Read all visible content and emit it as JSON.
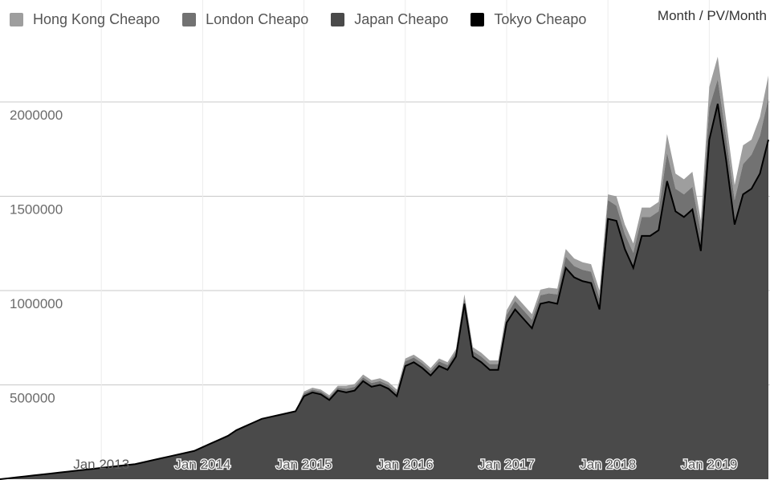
{
  "legend": [
    {
      "name": "Hong Kong Cheapo",
      "color": "#9e9e9e"
    },
    {
      "name": "London Cheapo",
      "color": "#727272"
    },
    {
      "name": "Japan Cheapo",
      "color": "#4a4a4a"
    },
    {
      "name": "Tokyo Cheapo",
      "color": "#000000"
    }
  ],
  "unit_label": "Month / PV/Month",
  "chart_data": {
    "type": "area",
    "stacked": true,
    "title": "",
    "xlabel": "",
    "ylabel": "Month / PV/Month",
    "ylim": [
      0,
      2500000
    ],
    "grid": true,
    "legend_position": "top-left",
    "y_ticks": [
      500000,
      1000000,
      1500000,
      2000000
    ],
    "y_tick_labels": [
      "500000",
      "1000000",
      "1500000",
      "2000000"
    ],
    "x_tick_labels": [
      "Jan 2013",
      "Jan 2014",
      "Jan 2015",
      "Jan 2016",
      "Jan 2017",
      "Jan 2018",
      "Jan 2019"
    ],
    "x_start": "2012-01",
    "total_months": 92,
    "series": [
      {
        "name": "Tokyo Cheapo",
        "color": "#000000",
        "values": [
          0,
          5000,
          10000,
          15000,
          20000,
          25000,
          30000,
          35000,
          40000,
          45000,
          50000,
          55000,
          60000,
          65000,
          70000,
          75000,
          80000,
          90000,
          100000,
          110000,
          120000,
          130000,
          140000,
          150000,
          170000,
          190000,
          210000,
          230000,
          260000,
          280000,
          300000,
          320000,
          330000,
          340000,
          350000,
          360000,
          440000,
          460000,
          450000,
          420000,
          470000,
          460000,
          470000,
          520000,
          490000,
          500000,
          480000,
          440000,
          600000,
          620000,
          590000,
          550000,
          600000,
          580000,
          650000,
          930000,
          650000,
          620000,
          580000,
          580000,
          830000,
          900000,
          850000,
          800000,
          930000,
          940000,
          930000,
          1120000,
          1070000,
          1050000,
          1040000,
          900000,
          1380000,
          1370000,
          1220000,
          1120000,
          1290000,
          1290000,
          1320000,
          1580000,
          1420000,
          1390000,
          1430000,
          1210000,
          1800000,
          1990000,
          1690000,
          1350000,
          1510000,
          1540000,
          1620000,
          1800000
        ]
      },
      {
        "name": "Japan Cheapo",
        "color": "#4a4a4a",
        "values": [
          0,
          0,
          0,
          0,
          0,
          0,
          0,
          0,
          0,
          0,
          0,
          0,
          0,
          0,
          0,
          0,
          0,
          0,
          0,
          0,
          0,
          0,
          0,
          0,
          0,
          0,
          0,
          0,
          0,
          0,
          0,
          0,
          0,
          0,
          0,
          0,
          0,
          0,
          0,
          0,
          0,
          0,
          0,
          0,
          0,
          0,
          0,
          0,
          0,
          0,
          0,
          0,
          0,
          0,
          0,
          0,
          0,
          0,
          0,
          0,
          0,
          0,
          0,
          0,
          0,
          0,
          0,
          0,
          0,
          0,
          0,
          0,
          0,
          0,
          0,
          0,
          0,
          0,
          0,
          0,
          0,
          0,
          0,
          0,
          0,
          0,
          0,
          0,
          0,
          0,
          0,
          0
        ]
      },
      {
        "name": "London Cheapo",
        "color": "#727272",
        "values": [
          0,
          0,
          0,
          0,
          0,
          0,
          0,
          0,
          0,
          0,
          0,
          0,
          0,
          0,
          0,
          0,
          0,
          0,
          0,
          0,
          0,
          0,
          0,
          0,
          0,
          0,
          0,
          0,
          0,
          0,
          0,
          0,
          0,
          0,
          0,
          0,
          15000,
          15000,
          15000,
          15000,
          15000,
          20000,
          20000,
          20000,
          20000,
          20000,
          20000,
          20000,
          25000,
          25000,
          25000,
          25000,
          25000,
          25000,
          25000,
          30000,
          30000,
          30000,
          30000,
          30000,
          40000,
          45000,
          45000,
          45000,
          45000,
          45000,
          50000,
          60000,
          60000,
          60000,
          60000,
          60000,
          100000,
          80000,
          80000,
          80000,
          100000,
          100000,
          100000,
          150000,
          120000,
          120000,
          120000,
          100000,
          170000,
          130000,
          120000,
          130000,
          160000,
          180000,
          200000,
          220000
        ]
      },
      {
        "name": "Hong Kong Cheapo",
        "color": "#9e9e9e",
        "values": [
          0,
          0,
          0,
          0,
          0,
          0,
          0,
          0,
          0,
          0,
          0,
          0,
          0,
          0,
          0,
          0,
          0,
          0,
          0,
          0,
          0,
          0,
          0,
          0,
          0,
          0,
          0,
          0,
          0,
          0,
          0,
          0,
          0,
          0,
          0,
          0,
          10000,
          10000,
          10000,
          10000,
          10000,
          15000,
          15000,
          15000,
          15000,
          15000,
          15000,
          15000,
          15000,
          15000,
          15000,
          15000,
          15000,
          15000,
          15000,
          20000,
          20000,
          20000,
          20000,
          20000,
          25000,
          30000,
          30000,
          30000,
          30000,
          30000,
          30000,
          40000,
          40000,
          40000,
          40000,
          40000,
          30000,
          50000,
          50000,
          50000,
          50000,
          50000,
          50000,
          100000,
          80000,
          80000,
          80000,
          60000,
          110000,
          120000,
          90000,
          80000,
          100000,
          80000,
          100000,
          120000
        ]
      }
    ]
  }
}
